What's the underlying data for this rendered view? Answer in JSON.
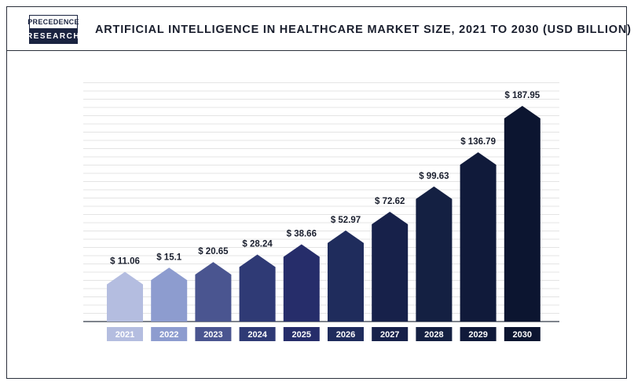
{
  "header": {
    "logo_top": "PRECEDENCE",
    "logo_bottom": "RESEARCH",
    "title": "ARTIFICIAL INTELLIGENCE IN HEALTHCARE MARKET SIZE, 2021 TO 2030 (USD BILLION)"
  },
  "chart_data": {
    "type": "bar",
    "title": "ARTIFICIAL INTELLIGENCE IN HEALTHCARE MARKET SIZE, 2021 TO 2030 (USD BILLION)",
    "categories": [
      "2021",
      "2022",
      "2023",
      "2024",
      "2025",
      "2026",
      "2027",
      "2028",
      "2029",
      "2030"
    ],
    "values": [
      11.06,
      15.1,
      20.65,
      28.24,
      38.66,
      52.97,
      72.62,
      99.63,
      136.79,
      187.95
    ],
    "value_labels": [
      "$ 11.06",
      "$ 15.1",
      "$ 20.65",
      "$ 28.24",
      "$ 38.66",
      "$ 52.97",
      "$ 72.62",
      "$ 99.63",
      "$ 136.79",
      "$ 187.95"
    ],
    "bar_colors": [
      "#b4bde0",
      "#8d9ccf",
      "#4a5590",
      "#2f3a75",
      "#262d6a",
      "#1f2c5c",
      "#17214a",
      "#142042",
      "#101a3a",
      "#0c1530"
    ],
    "xlabel": "",
    "ylabel": "",
    "grid": true,
    "legend": "none"
  }
}
